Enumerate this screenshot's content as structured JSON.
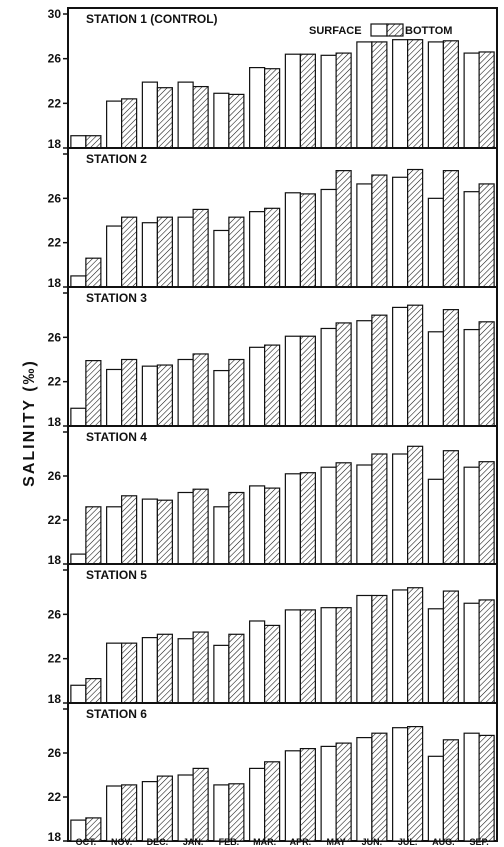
{
  "chart_data": {
    "type": "bar",
    "ylabel": "SALINITY (‰)",
    "ylim": [
      18,
      30
    ],
    "yticks": [
      "18",
      "22",
      "26",
      "30"
    ],
    "categories": [
      "OCT.",
      "NOV.",
      "DEC.",
      "JAN.",
      "FEB.",
      "MAR.",
      "APR.",
      "MAY",
      "JUN.",
      "JUL.",
      "AUG.",
      "SEP."
    ],
    "legend": {
      "surface": "SURFACE",
      "bottom": "BOTTOM"
    },
    "stations": [
      {
        "title": "STATION 1 (CONTROL)",
        "series": [
          {
            "name": "SURFACE",
            "values": [
              19.1,
              22.2,
              23.9,
              23.9,
              22.9,
              25.2,
              26.4,
              26.3,
              27.5,
              27.7,
              27.5,
              26.5
            ]
          },
          {
            "name": "BOTTOM",
            "values": [
              19.1,
              22.4,
              23.4,
              23.5,
              22.8,
              25.1,
              26.4,
              26.5,
              27.5,
              27.7,
              27.6,
              26.6
            ]
          }
        ]
      },
      {
        "title": "STATION 2",
        "series": [
          {
            "name": "SURFACE",
            "values": [
              19.0,
              23.5,
              23.8,
              24.3,
              23.1,
              24.8,
              26.5,
              26.8,
              27.3,
              27.9,
              26.0,
              26.6
            ]
          },
          {
            "name": "BOTTOM",
            "values": [
              20.6,
              24.3,
              24.3,
              25.0,
              24.3,
              25.1,
              26.4,
              28.5,
              28.1,
              28.6,
              28.5,
              27.3
            ]
          }
        ]
      },
      {
        "title": "STATION 3",
        "series": [
          {
            "name": "SURFACE",
            "values": [
              19.6,
              23.1,
              23.4,
              24.0,
              23.0,
              25.1,
              26.1,
              26.8,
              27.5,
              28.7,
              26.5,
              26.7
            ]
          },
          {
            "name": "BOTTOM",
            "values": [
              23.9,
              24.0,
              23.5,
              24.5,
              24.0,
              25.3,
              26.1,
              27.3,
              28.0,
              28.9,
              28.5,
              27.4
            ]
          }
        ]
      },
      {
        "title": "STATION 4",
        "series": [
          {
            "name": "SURFACE",
            "values": [
              18.9,
              23.2,
              23.9,
              24.5,
              23.2,
              25.1,
              26.2,
              26.8,
              27.0,
              28.0,
              25.7,
              26.8
            ]
          },
          {
            "name": "BOTTOM",
            "values": [
              23.2,
              24.2,
              23.8,
              24.8,
              24.5,
              24.9,
              26.3,
              27.2,
              28.0,
              28.7,
              28.3,
              27.3
            ]
          }
        ]
      },
      {
        "title": "STATION 5",
        "series": [
          {
            "name": "SURFACE",
            "values": [
              19.6,
              23.4,
              23.9,
              23.8,
              23.2,
              25.4,
              26.4,
              26.6,
              27.7,
              28.2,
              26.5,
              27.0
            ]
          },
          {
            "name": "BOTTOM",
            "values": [
              20.2,
              23.4,
              24.2,
              24.4,
              24.2,
              25.0,
              26.4,
              26.6,
              27.7,
              28.4,
              28.1,
              27.3
            ]
          }
        ]
      },
      {
        "title": "STATION 6",
        "series": [
          {
            "name": "SURFACE",
            "values": [
              19.9,
              23.0,
              23.4,
              24.0,
              23.1,
              24.6,
              26.2,
              26.6,
              27.4,
              28.3,
              25.7,
              27.8
            ]
          },
          {
            "name": "BOTTOM",
            "values": [
              20.1,
              23.1,
              23.9,
              24.6,
              23.2,
              25.2,
              26.4,
              26.9,
              27.8,
              28.4,
              27.2,
              27.6
            ]
          }
        ]
      }
    ]
  }
}
